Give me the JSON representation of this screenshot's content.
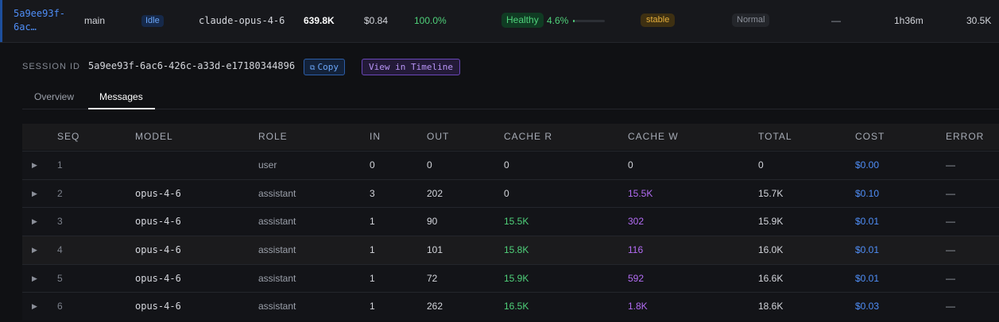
{
  "session": {
    "id_short": "5a9ee93f-6ac…",
    "branch": "main",
    "status": "Idle",
    "model": "claude-opus-4-6",
    "tokens": "639.8K",
    "cost": "$0.84",
    "cache_pct": "100.0%",
    "health": "Healthy",
    "health_pct": "4.6%",
    "health_level": 0.046,
    "trend": "stable",
    "mode": "Normal",
    "dash": "—",
    "duration": "1h36m",
    "count": "30.5K"
  },
  "detail": {
    "session_label": "SESSION ID",
    "session_id": "5a9ee93f-6ac6-426c-a33d-e17180344896",
    "copy_label": "Copy",
    "copy_icon": "copy-icon",
    "timeline_label": "View in Timeline",
    "tabs": [
      {
        "label": "Overview",
        "active": false
      },
      {
        "label": "Messages",
        "active": true
      }
    ]
  },
  "table": {
    "headers": [
      "SEQ",
      "MODEL",
      "ROLE",
      "IN",
      "OUT",
      "CACHE R",
      "CACHE W",
      "TOTAL",
      "COST",
      "ERROR"
    ],
    "rows": [
      {
        "seq": "1",
        "model": "",
        "role": "user",
        "in": "0",
        "out": "0",
        "cache_r": "0",
        "cache_w": "0",
        "total": "0",
        "cost": "$0.00",
        "error": "—"
      },
      {
        "seq": "2",
        "model": "opus-4-6",
        "role": "assistant",
        "in": "3",
        "out": "202",
        "cache_r": "0",
        "cache_w": "15.5K",
        "total": "15.7K",
        "cost": "$0.10",
        "error": "—"
      },
      {
        "seq": "3",
        "model": "opus-4-6",
        "role": "assistant",
        "in": "1",
        "out": "90",
        "cache_r": "15.5K",
        "cache_w": "302",
        "total": "15.9K",
        "cost": "$0.01",
        "error": "—"
      },
      {
        "seq": "4",
        "model": "opus-4-6",
        "role": "assistant",
        "in": "1",
        "out": "101",
        "cache_r": "15.8K",
        "cache_w": "116",
        "total": "16.0K",
        "cost": "$0.01",
        "error": "—"
      },
      {
        "seq": "5",
        "model": "opus-4-6",
        "role": "assistant",
        "in": "1",
        "out": "72",
        "cache_r": "15.9K",
        "cache_w": "592",
        "total": "16.6K",
        "cost": "$0.01",
        "error": "—"
      },
      {
        "seq": "6",
        "model": "opus-4-6",
        "role": "assistant",
        "in": "1",
        "out": "262",
        "cache_r": "16.5K",
        "cache_w": "1.8K",
        "total": "18.6K",
        "cost": "$0.03",
        "error": "—"
      }
    ]
  },
  "colors": {
    "link": "#4f8ef7",
    "cache_read": "#4fd17a",
    "cache_write": "#b36cf4",
    "cost": "#4f8ef7"
  }
}
